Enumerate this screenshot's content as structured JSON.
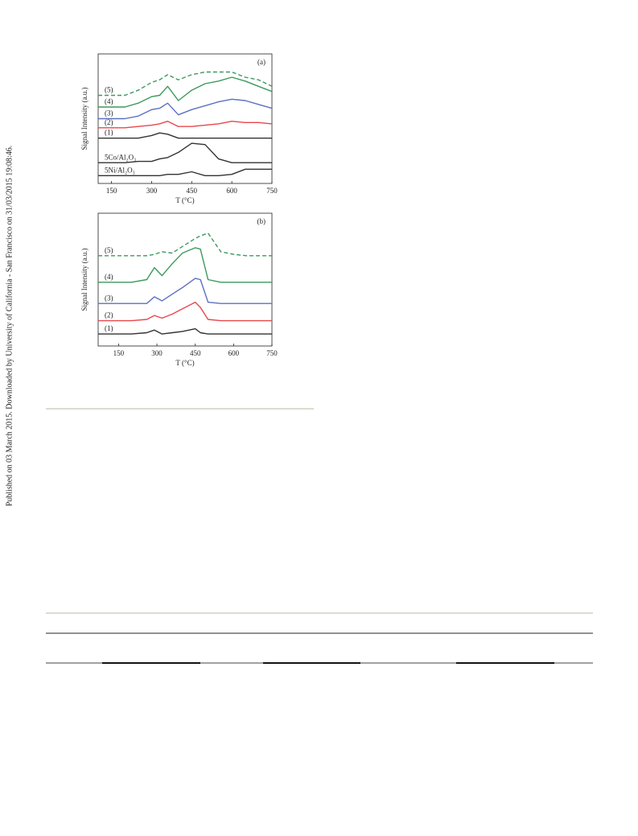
{
  "side_note": "Published on 03 March 2015. Downloaded by University of California - San Francisco on 31/03/2015 19:08:46.",
  "chart_data": [
    {
      "type": "line",
      "panel": "(a)",
      "x_label": "T (°C)",
      "y_label": "Signal Intensity (a.u.)",
      "x": [
        100,
        200,
        250,
        300,
        330,
        360,
        400,
        450,
        500,
        550,
        600,
        650,
        700,
        750
      ],
      "xlim": [
        100,
        750
      ],
      "xticks": [
        150,
        300,
        450,
        600,
        750
      ],
      "ylim": [
        0,
        100
      ],
      "series": [
        {
          "name": "(5)",
          "color": "#3a9a5c",
          "dashed": true,
          "values": [
            68,
            68,
            72,
            78,
            80,
            84,
            80,
            84,
            86,
            86,
            86,
            82,
            80,
            75
          ]
        },
        {
          "name": "(4)",
          "color": "#3a9a5c",
          "values": [
            59,
            59,
            62,
            67,
            68,
            75,
            64,
            72,
            77,
            79,
            82,
            79,
            75,
            71
          ]
        },
        {
          "name": "(3)",
          "color": "#5b70c2",
          "values": [
            50,
            50,
            52,
            57,
            58,
            62,
            53,
            57,
            60,
            63,
            65,
            64,
            61,
            58
          ]
        },
        {
          "name": "(2)",
          "color": "#e8474d",
          "values": [
            43,
            43,
            44,
            45,
            46,
            48,
            44,
            44,
            45,
            46,
            48,
            47,
            47,
            46
          ]
        },
        {
          "name": "(1)",
          "color": "#333333",
          "values": [
            35,
            35,
            35,
            37,
            39,
            38,
            35,
            35,
            35,
            35,
            35,
            35,
            35,
            35
          ]
        },
        {
          "name": "5Co/Al₂O₃",
          "color": "#333333",
          "values": [
            16,
            16,
            17,
            17,
            19,
            20,
            24,
            31,
            30,
            19,
            16,
            16,
            16,
            16
          ]
        },
        {
          "name": "5Ni/Al₂O₃",
          "color": "#333333",
          "values": [
            6,
            6,
            6,
            6,
            6,
            7,
            7,
            9,
            6,
            6,
            7,
            11,
            11,
            11
          ]
        }
      ]
    },
    {
      "type": "line",
      "panel": "(b)",
      "x_label": "T (°C)",
      "y_label": "Signal Intensity (a.u.)",
      "x": [
        70,
        200,
        260,
        290,
        320,
        360,
        400,
        450,
        470,
        500,
        550,
        600,
        650,
        750
      ],
      "xlim": [
        70,
        750
      ],
      "xticks": [
        150,
        300,
        450,
        600,
        750
      ],
      "ylim": [
        0,
        100
      ],
      "series": [
        {
          "name": "(5)",
          "color": "#3a9a5c",
          "dashed": true,
          "values": [
            68,
            68,
            68,
            69,
            71,
            70,
            75,
            81,
            83,
            85,
            71,
            69,
            68,
            68
          ]
        },
        {
          "name": "(4)",
          "color": "#3a9a5c",
          "values": [
            48,
            48,
            50,
            59,
            53,
            62,
            70,
            74,
            73,
            50,
            48,
            48,
            48,
            48
          ]
        },
        {
          "name": "(3)",
          "color": "#5b70c2",
          "values": [
            32,
            32,
            32,
            37,
            34,
            39,
            44,
            51,
            50,
            33,
            32,
            32,
            32,
            32
          ]
        },
        {
          "name": "(2)",
          "color": "#e8474d",
          "values": [
            19,
            19,
            20,
            23,
            21,
            24,
            28,
            33,
            29,
            20,
            19,
            19,
            19,
            19
          ]
        },
        {
          "name": "(1)",
          "color": "#333333",
          "values": [
            9,
            9,
            10,
            12,
            9,
            10,
            11,
            13,
            10,
            9,
            9,
            9,
            9,
            9
          ]
        }
      ]
    }
  ]
}
